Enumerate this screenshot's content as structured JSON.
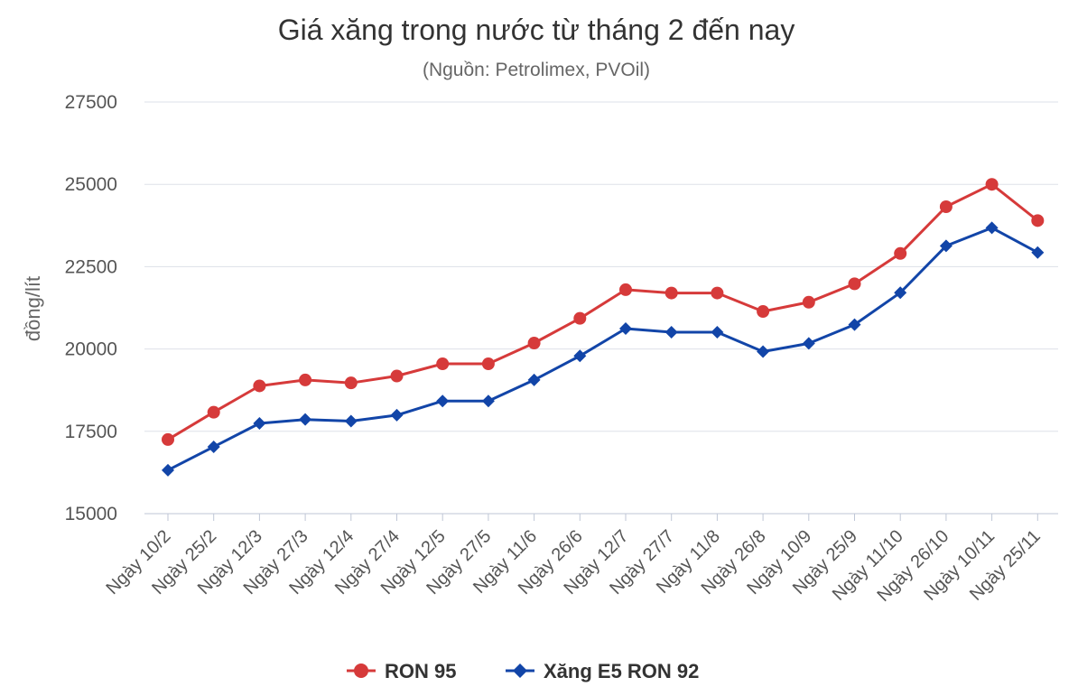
{
  "chart_data": {
    "type": "line",
    "title": "Giá xăng trong nước từ tháng 2 đến nay",
    "subtitle": "(Nguồn: Petrolimex, PVOil)",
    "xlabel": "",
    "ylabel": "đồng/lít",
    "ylim": [
      15000,
      27500
    ],
    "yticks": [
      "15000",
      "17500",
      "20000",
      "22500",
      "25000",
      "27500"
    ],
    "ytick_values": [
      15000,
      17500,
      20000,
      22500,
      25000,
      27500
    ],
    "grid": true,
    "legend_position": "bottom-center",
    "categories": [
      "Ngày 10/2",
      "Ngày 25/2",
      "Ngày 12/3",
      "Ngày 27/3",
      "Ngày 12/4",
      "Ngày 27/4",
      "Ngày 12/5",
      "Ngày 27/5",
      "Ngày 11/6",
      "Ngày 26/6",
      "Ngày 12/7",
      "Ngày 27/7",
      "Ngày 11/8",
      "Ngày 26/8",
      "Ngày 10/9",
      "Ngày 25/9",
      "Ngày 11/10",
      "Ngày 26/10",
      "Ngày 10/11",
      "Ngày 25/11"
    ],
    "series": [
      {
        "name": "RON 95",
        "color": "#d63a3a",
        "marker": "circle",
        "values": [
          17250,
          18080,
          18880,
          19060,
          18970,
          19180,
          19550,
          19550,
          20180,
          20930,
          21800,
          21700,
          21700,
          21140,
          21420,
          21980,
          22900,
          24320,
          25000,
          23900
        ]
      },
      {
        "name": "Xăng E5 RON 92",
        "color": "#1245a8",
        "marker": "diamond",
        "values": [
          16320,
          17030,
          17740,
          17860,
          17810,
          17990,
          18420,
          18420,
          19060,
          19790,
          20620,
          20510,
          20510,
          19920,
          20170,
          20740,
          21710,
          23130,
          23680,
          22930
        ]
      }
    ]
  }
}
